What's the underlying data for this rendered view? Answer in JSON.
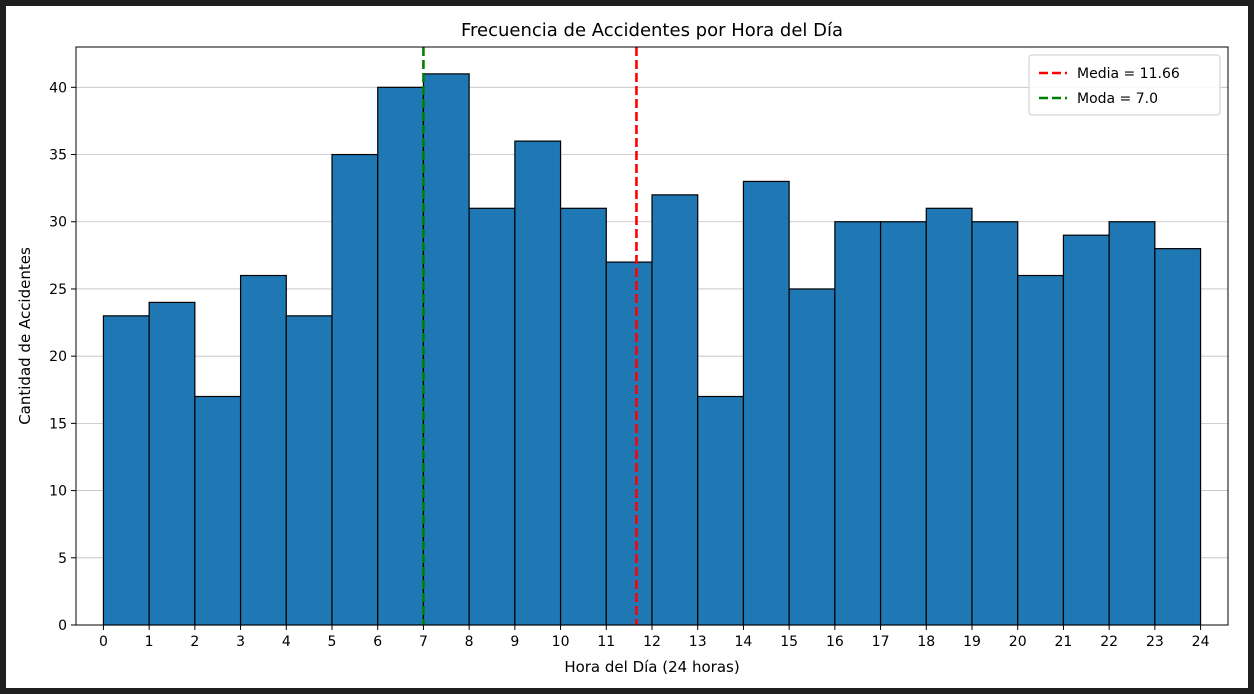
{
  "chart_data": {
    "type": "bar",
    "title": "Frecuencia de Accidentes por Hora del Día",
    "xlabel": "Hora del Día (24 horas)",
    "ylabel": "Cantidad de Accidentes",
    "x_ticks": [
      "0",
      "1",
      "2",
      "3",
      "4",
      "5",
      "6",
      "7",
      "8",
      "9",
      "10",
      "11",
      "12",
      "13",
      "14",
      "15",
      "16",
      "17",
      "18",
      "19",
      "20",
      "21",
      "22",
      "23",
      "24"
    ],
    "y_ticks": [
      "0",
      "5",
      "10",
      "15",
      "20",
      "25",
      "30",
      "35",
      "40"
    ],
    "bin_edges": [
      0,
      1,
      2,
      3,
      4,
      5,
      6,
      7,
      8,
      9,
      10,
      11,
      12,
      13,
      14,
      15,
      16,
      17,
      18,
      19,
      20,
      21,
      22,
      23,
      24
    ],
    "values": [
      23,
      24,
      17,
      26,
      23,
      35,
      40,
      41,
      31,
      36,
      31,
      27,
      32,
      17,
      33,
      25,
      30,
      30,
      31,
      30,
      26,
      29,
      30,
      28
    ],
    "xlim": [
      -0.6,
      24.6
    ],
    "ylim": [
      0,
      43
    ],
    "grid": "y",
    "bar_color": "#1f77b4",
    "edge_color": "#000000",
    "reference_lines": [
      {
        "label": "Media = 11.66",
        "x": 11.66,
        "color": "#ff0000"
      },
      {
        "label": "Moda = 7.0",
        "x": 7.0,
        "color": "#008000"
      }
    ],
    "legend_position": "top-right"
  }
}
